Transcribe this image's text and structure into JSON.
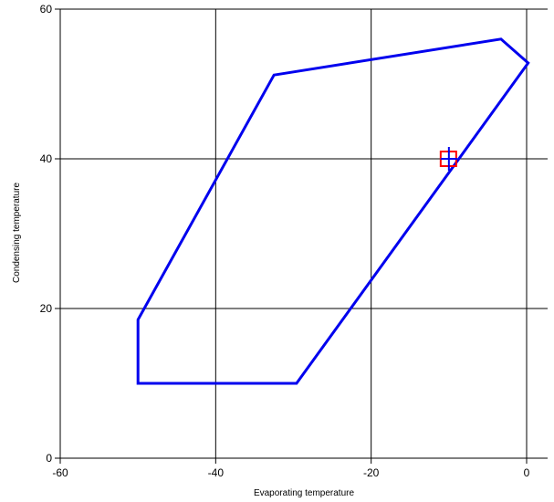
{
  "chart_data": {
    "type": "line",
    "title": "",
    "xlabel": "Evaporating temperature",
    "ylabel": "Condensing temperature",
    "xlim": [
      -60,
      0
    ],
    "ylim": [
      0,
      60
    ],
    "x_ticks": [
      -60,
      -40,
      -20,
      0
    ],
    "y_ticks": [
      0,
      20,
      40,
      60
    ],
    "grid": true,
    "series": [
      {
        "closed": true,
        "color": "#0000ee",
        "points": [
          [
            -50,
            10
          ],
          [
            -29.6,
            10
          ],
          [
            0.2,
            52.8
          ],
          [
            -3.3,
            56
          ],
          [
            -32.5,
            51.2
          ],
          [
            -50,
            18.5
          ]
        ]
      }
    ],
    "marker": {
      "x": -10,
      "y": 40,
      "square_color": "#ff0000",
      "cross_color": "#0000ee"
    }
  }
}
